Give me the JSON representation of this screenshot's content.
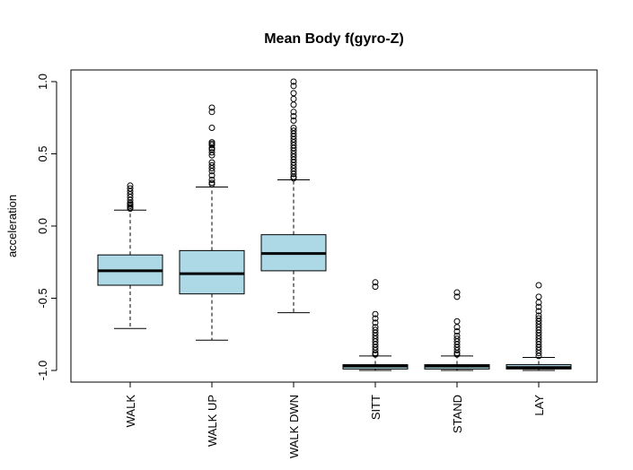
{
  "chart_data": {
    "type": "boxplot",
    "title": "Mean Body f(gyro-Z)",
    "xlabel": "",
    "ylabel": "acceleration",
    "ylim": [
      -1.05,
      1.05
    ],
    "yticks": [
      "-1.0",
      "-0.5",
      "0.0",
      "0.5",
      "1.0"
    ],
    "ytick_values": [
      -1.0,
      -0.5,
      0.0,
      0.5,
      1.0
    ],
    "grid": false,
    "box_color": "#add8e6",
    "categories": [
      "WALK",
      "WALK UP",
      "WALK DWN",
      "SITT",
      "STAND",
      "LAY"
    ],
    "boxes": [
      {
        "whisker_low": -0.71,
        "q1": -0.41,
        "median": -0.31,
        "q3": -0.2,
        "whisker_high": 0.11,
        "outliers": [
          0.28,
          0.26,
          0.24,
          0.22,
          0.2,
          0.18,
          0.16,
          0.15,
          0.14,
          0.13,
          0.12
        ]
      },
      {
        "whisker_low": -0.79,
        "q1": -0.47,
        "median": -0.33,
        "q3": -0.17,
        "whisker_high": 0.27,
        "outliers": [
          0.82,
          0.79,
          0.68,
          0.58,
          0.57,
          0.56,
          0.54,
          0.53,
          0.51,
          0.49,
          0.44,
          0.42,
          0.4,
          0.38,
          0.35,
          0.32,
          0.3,
          0.29
        ]
      },
      {
        "whisker_low": -0.6,
        "q1": -0.31,
        "median": -0.19,
        "q3": -0.06,
        "whisker_high": 0.32,
        "outliers": [
          1.0,
          0.97,
          0.92,
          0.88,
          0.84,
          0.79,
          0.76,
          0.73,
          0.68,
          0.66,
          0.64,
          0.62,
          0.6,
          0.58,
          0.56,
          0.54,
          0.52,
          0.5,
          0.48,
          0.46,
          0.44,
          0.42,
          0.4,
          0.38,
          0.36,
          0.34,
          0.33
        ]
      },
      {
        "whisker_low": -1.0,
        "q1": -0.99,
        "median": -0.97,
        "q3": -0.96,
        "whisker_high": -0.9,
        "outliers": [
          -0.39,
          -0.42,
          -0.61,
          -0.64,
          -0.67,
          -0.7,
          -0.72,
          -0.74,
          -0.76,
          -0.78,
          -0.8,
          -0.82,
          -0.84,
          -0.86,
          -0.88,
          -0.89
        ]
      },
      {
        "whisker_low": -1.0,
        "q1": -0.99,
        "median": -0.97,
        "q3": -0.96,
        "whisker_high": -0.9,
        "outliers": [
          -0.46,
          -0.49,
          -0.66,
          -0.7,
          -0.73,
          -0.76,
          -0.78,
          -0.8,
          -0.82,
          -0.84,
          -0.86,
          -0.88,
          -0.89
        ]
      },
      {
        "whisker_low": -1.0,
        "q1": -0.99,
        "median": -0.98,
        "q3": -0.96,
        "whisker_high": -0.91,
        "outliers": [
          -0.41,
          -0.49,
          -0.53,
          -0.56,
          -0.59,
          -0.62,
          -0.64,
          -0.66,
          -0.68,
          -0.7,
          -0.72,
          -0.74,
          -0.76,
          -0.78,
          -0.8,
          -0.82,
          -0.84,
          -0.86,
          -0.88,
          -0.9
        ]
      }
    ]
  }
}
